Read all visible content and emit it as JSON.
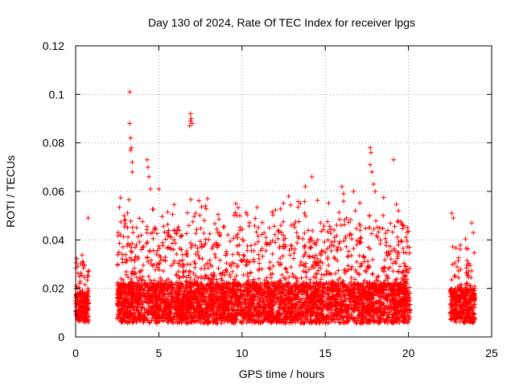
{
  "chart_data": {
    "type": "scatter",
    "title": "Day 130 of 2024, Rate Of TEC Index for receiver lpgs",
    "xlabel": "GPS time / hours",
    "ylabel": "ROTI / TECUs",
    "xlim": [
      0,
      25
    ],
    "ylim": [
      0,
      0.12
    ],
    "xticks": [
      0,
      5,
      10,
      15,
      20,
      25
    ],
    "xtick_labels": [
      "0",
      "5",
      "10",
      "15",
      "20",
      "25"
    ],
    "yticks": [
      0,
      0.02,
      0.04,
      0.06,
      0.08,
      0.1,
      0.12
    ],
    "ytick_labels": [
      "0",
      "0.02",
      "0.04",
      "0.06",
      "0.08",
      "0.1",
      "0.12"
    ],
    "grid": true,
    "marker": "+",
    "color": "#ff0000",
    "series": [
      {
        "name": "ROTI",
        "segments": [
          {
            "x_start": 0.0,
            "x_end": 0.8,
            "baseline": 0.012,
            "spread": 0.01,
            "max_typical": 0.03
          },
          {
            "x_start": 2.5,
            "x_end": 20.1,
            "baseline": 0.014,
            "spread": 0.014,
            "max_typical": 0.05
          },
          {
            "x_start": 22.5,
            "x_end": 24.0,
            "baseline": 0.013,
            "spread": 0.012,
            "max_typical": 0.035
          }
        ],
        "notable_points": [
          {
            "x": 0.75,
            "y": 0.049
          },
          {
            "x": 3.25,
            "y": 0.101
          },
          {
            "x": 3.25,
            "y": 0.088
          },
          {
            "x": 3.3,
            "y": 0.082
          },
          {
            "x": 3.35,
            "y": 0.078
          },
          {
            "x": 3.3,
            "y": 0.077
          },
          {
            "x": 3.4,
            "y": 0.072
          },
          {
            "x": 3.4,
            "y": 0.068
          },
          {
            "x": 4.3,
            "y": 0.073
          },
          {
            "x": 4.35,
            "y": 0.07
          },
          {
            "x": 4.4,
            "y": 0.066
          },
          {
            "x": 4.5,
            "y": 0.061
          },
          {
            "x": 5.0,
            "y": 0.061
          },
          {
            "x": 6.9,
            "y": 0.092
          },
          {
            "x": 6.95,
            "y": 0.09
          },
          {
            "x": 6.9,
            "y": 0.089
          },
          {
            "x": 7.0,
            "y": 0.088
          },
          {
            "x": 6.85,
            "y": 0.087
          },
          {
            "x": 7.8,
            "y": 0.054
          },
          {
            "x": 9.7,
            "y": 0.05
          },
          {
            "x": 12.8,
            "y": 0.058
          },
          {
            "x": 13.5,
            "y": 0.055
          },
          {
            "x": 13.8,
            "y": 0.062
          },
          {
            "x": 14.2,
            "y": 0.066
          },
          {
            "x": 16.0,
            "y": 0.062
          },
          {
            "x": 16.1,
            "y": 0.059
          },
          {
            "x": 16.1,
            "y": 0.056
          },
          {
            "x": 16.7,
            "y": 0.06
          },
          {
            "x": 16.8,
            "y": 0.052
          },
          {
            "x": 17.7,
            "y": 0.078
          },
          {
            "x": 17.75,
            "y": 0.076
          },
          {
            "x": 17.7,
            "y": 0.071
          },
          {
            "x": 17.8,
            "y": 0.068
          },
          {
            "x": 17.9,
            "y": 0.063
          },
          {
            "x": 18.0,
            "y": 0.06
          },
          {
            "x": 19.1,
            "y": 0.073
          },
          {
            "x": 22.6,
            "y": 0.051
          },
          {
            "x": 22.7,
            "y": 0.049
          },
          {
            "x": 23.8,
            "y": 0.047
          },
          {
            "x": 23.9,
            "y": 0.043
          }
        ]
      }
    ]
  }
}
